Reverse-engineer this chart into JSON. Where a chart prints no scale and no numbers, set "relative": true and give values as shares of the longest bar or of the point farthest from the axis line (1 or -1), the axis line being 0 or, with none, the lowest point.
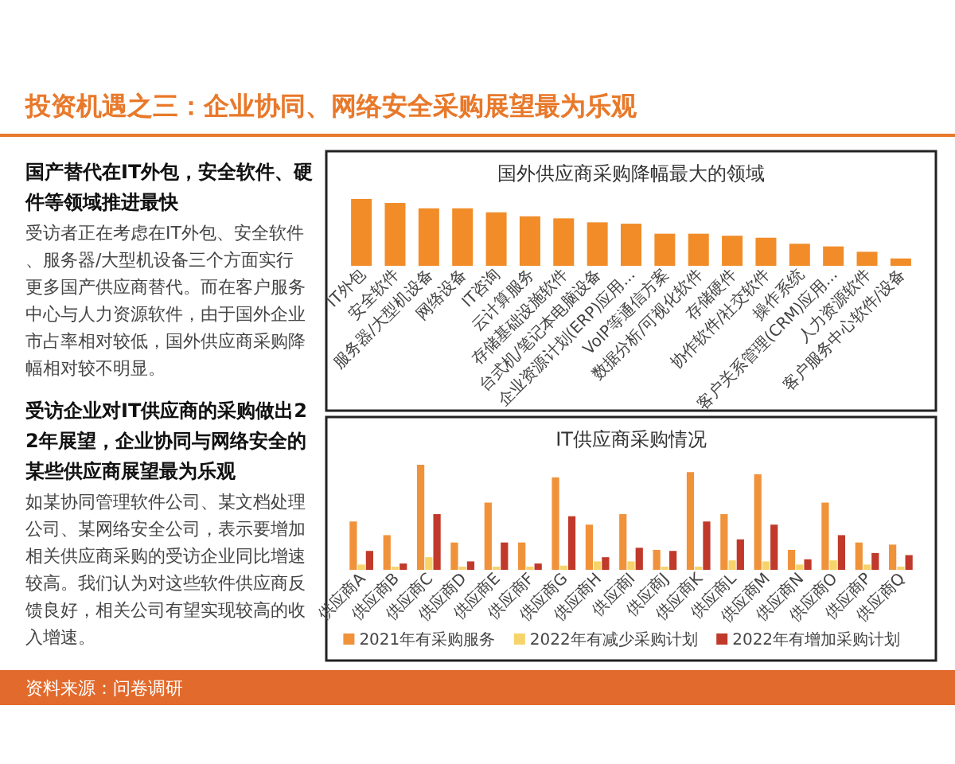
{
  "chart_data": [
    {
      "type": "other",
      "title": "投资机遇之三：企业协同、网络安全采购展望最为乐观",
      "annotations": [
        "国产替代在IT外包，安全软件、硬件等领域推进最快",
        "受访者正在考虑在IT外包、安全软件、服务器/大型机设备三个方面实行更多国产供应商替代。而在客户服务中心与人力资源软件，由于国外企业市占率相对较低，国外供应商采购降幅相对较不明显。",
        "受访企业对IT供应商的采购做出22年展望，企业协同与网络安全的某些供应商展望最为乐观",
        "如某协同管理软件公司、某文档处理公司、某网络安全公司，表示要增加相关供应商采购的受访企业同比增速较高。我们认为对这些软件供应商反馈良好，相关公司有望实现较高的收入增速。",
        "资料来源：问卷调研"
      ]
    },
    {
      "type": "bar",
      "title": "国外供应商采购降幅最大的领域",
      "relative": true,
      "categories": [
        "IT外包",
        "安全软件",
        "服务器/大型机设备",
        "网络设备",
        "IT咨询",
        "云计算服务",
        "存储基础设施软件",
        "台式机/笔记本电脑设备",
        "企业资源计划(ERP)应用...",
        "VoIP等通信方案",
        "数据分析/可视化软件",
        "存储硬件",
        "协作软件/社交软件",
        "操作系统",
        "客户关系管理(CRM)应用...",
        "人力资源软件",
        "客户服务中心软件/设备"
      ],
      "color": "#f28c28",
      "values": [
        1,
        0.94,
        0.86,
        0.86,
        0.8,
        0.74,
        0.71,
        0.65,
        0.63,
        0.48,
        0.48,
        0.45,
        0.42,
        0.33,
        0.29,
        0.21,
        0.11
      ]
    },
    {
      "type": "bar",
      "title": "IT供应商采购情况",
      "relative": true,
      "legend": "bottom",
      "categories": [
        "供应商A",
        "供应商B",
        "供应商C",
        "供应商D",
        "供应商E",
        "供应商F",
        "供应商G",
        "供应商H",
        "供应商I",
        "供应商J",
        "供应商K",
        "供应商L",
        "供应商M",
        "供应商N",
        "供应商O",
        "供应商P",
        "供应商Q"
      ],
      "series": [
        {
          "name": "2021年有采购服务",
          "color": "#f0923a",
          "values": [
            0.46,
            0.33,
            1,
            0.26,
            0.64,
            0.26,
            0.88,
            0.43,
            0.53,
            0.19,
            0.93,
            0.53,
            0.91,
            0.19,
            0.64,
            0.26,
            0.24
          ]
        },
        {
          "name": "2022年有减少采购计划",
          "color": "#f7d36b",
          "values": [
            0.05,
            0.03,
            0.12,
            0.03,
            0.03,
            0.03,
            0.04,
            0.08,
            0.08,
            0.03,
            0.03,
            0.09,
            0.08,
            0.05,
            0.09,
            0.05,
            0.03
          ]
        },
        {
          "name": "2022年有增加采购计划",
          "color": "#c0392b",
          "values": [
            0.18,
            0.06,
            0.53,
            0.08,
            0.26,
            0.06,
            0.51,
            0.12,
            0.21,
            0.18,
            0.46,
            0.29,
            0.43,
            0.1,
            0.33,
            0.16,
            0.14
          ]
        }
      ]
    }
  ]
}
